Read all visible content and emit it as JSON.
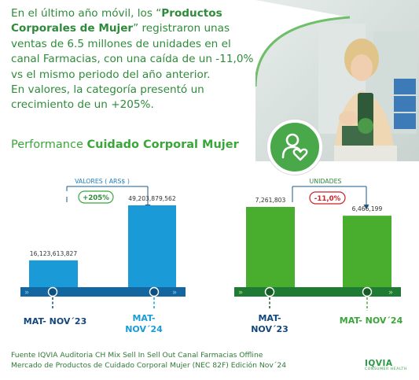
{
  "intro": {
    "p1_a": "En el último año móvil, los “",
    "p1_bold": "Productos Corporales de Mujer",
    "p1_b": "” registraron unas ventas de 6.5 millones de unidades en el canal Farmacias, con una caída de un -11,0% vs el mismo periodo del año anterior.",
    "p2": "En valores, la categoría presentó un crecimiento de un +205%."
  },
  "section": {
    "title_plain": "Performance ",
    "title_bold": "Cuidado Corporal Mujer"
  },
  "footer": {
    "line1": "Fuente IQVIA Auditoria CH Mix Sell In Sell Out Canal Farmacias Offline",
    "line2": "Mercado de Productos de Cuidado Corporal Mujer (NEC 82F) Edición Nov´24"
  },
  "logo": {
    "name": "IQVIA",
    "sub": "CONSUMER HEALTH"
  },
  "badge": {
    "icon": "person-heart-icon"
  },
  "colors": {
    "green_text": "#2e8b3a",
    "blue": "#1a9bd7",
    "green_bar": "#49ad2e",
    "red": "#cc2027",
    "dark_blue_track": "#1466a0",
    "dark_green_track": "#1f7a33"
  },
  "chart_data": [
    {
      "type": "bar",
      "title": "VALORES ( ARS$ )",
      "categories": [
        "MAT- NOV´23",
        "MAT- NOV´24"
      ],
      "values": [
        16123613827,
        49203879562
      ],
      "value_labels": [
        "16,123,613,827",
        "49,203,879,562"
      ],
      "change_label": "+205%",
      "color": "#1a9bd7",
      "ylim": [
        0,
        55000000000
      ]
    },
    {
      "type": "bar",
      "title": "UNIDADES",
      "categories": [
        "MAT- NOV´23",
        "MAT- NOV´24"
      ],
      "values": [
        7261803,
        6466199
      ],
      "value_labels": [
        "7,261,803",
        "6,466,199"
      ],
      "change_label": "-11,0%",
      "color": "#49ad2e",
      "ylim": [
        0,
        8500000
      ]
    }
  ]
}
